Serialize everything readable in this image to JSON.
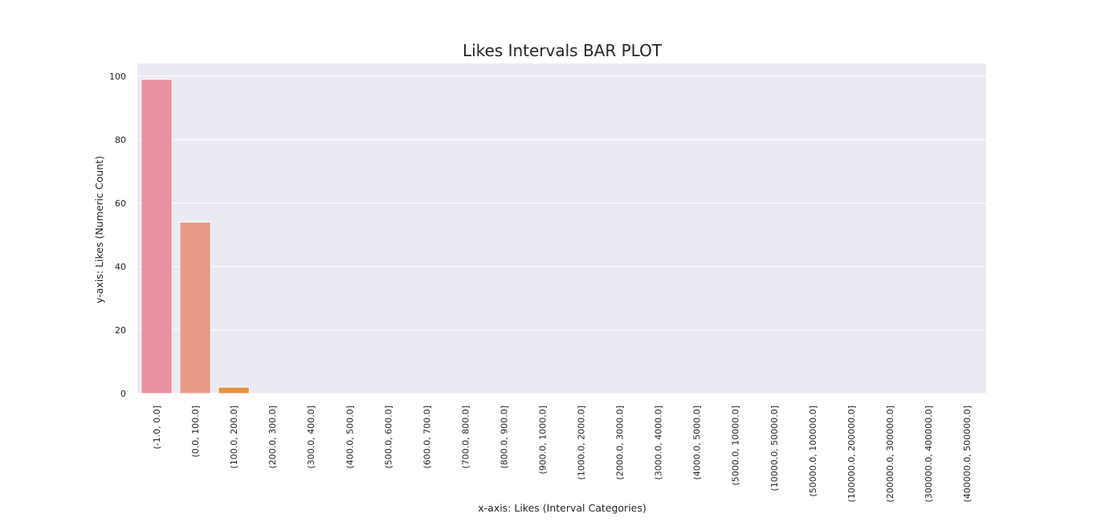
{
  "chart_data": {
    "type": "bar",
    "title": "Likes Intervals BAR PLOT",
    "xlabel": "x-axis: Likes (Interval Categories)",
    "ylabel": "y-axis: Likes (Numeric Count)",
    "categories": [
      "(-1.0, 0.0]",
      "(0.0, 100.0]",
      "(100.0, 200.0]",
      "(200.0, 300.0]",
      "(300.0, 400.0]",
      "(400.0, 500.0]",
      "(500.0, 600.0]",
      "(600.0, 700.0]",
      "(700.0, 800.0]",
      "(800.0, 900.0]",
      "(900.0, 1000.0]",
      "(1000.0, 2000.0]",
      "(2000.0, 3000.0]",
      "(3000.0, 4000.0]",
      "(4000.0, 5000.0]",
      "(5000.0, 10000.0]",
      "(10000.0, 50000.0]",
      "(50000.0, 100000.0]",
      "(100000.0, 200000.0]",
      "(200000.0, 300000.0]",
      "(300000.0, 400000.0]",
      "(400000.0, 500000.0]"
    ],
    "values": [
      99,
      54,
      2,
      0,
      0,
      0,
      0,
      0,
      0,
      0,
      0,
      0,
      0,
      0,
      0,
      0,
      0,
      0,
      0,
      0,
      0,
      0
    ],
    "ylim": [
      0,
      104
    ],
    "yticks": [
      0,
      20,
      40,
      60,
      80,
      100
    ],
    "grid": true,
    "legend": "none",
    "colors": [
      "#e8909f",
      "#e89a86",
      "#e69040",
      "#c7a23a",
      "#aeae3a",
      "#8fb83c",
      "#5bbd55",
      "#3cbc83",
      "#3bb99e",
      "#3cb6b0",
      "#3db3c1",
      "#3eafd3",
      "#63a6e5",
      "#8f9ef0",
      "#b394f0",
      "#d38aea",
      "#e582d8",
      "#ec84c2",
      "#ef88ae",
      "#ee8c9c",
      "#ec8f8f",
      "#e99582"
    ],
    "plot_background": "#eaeaf2",
    "gridline_color": "#ffffff"
  }
}
